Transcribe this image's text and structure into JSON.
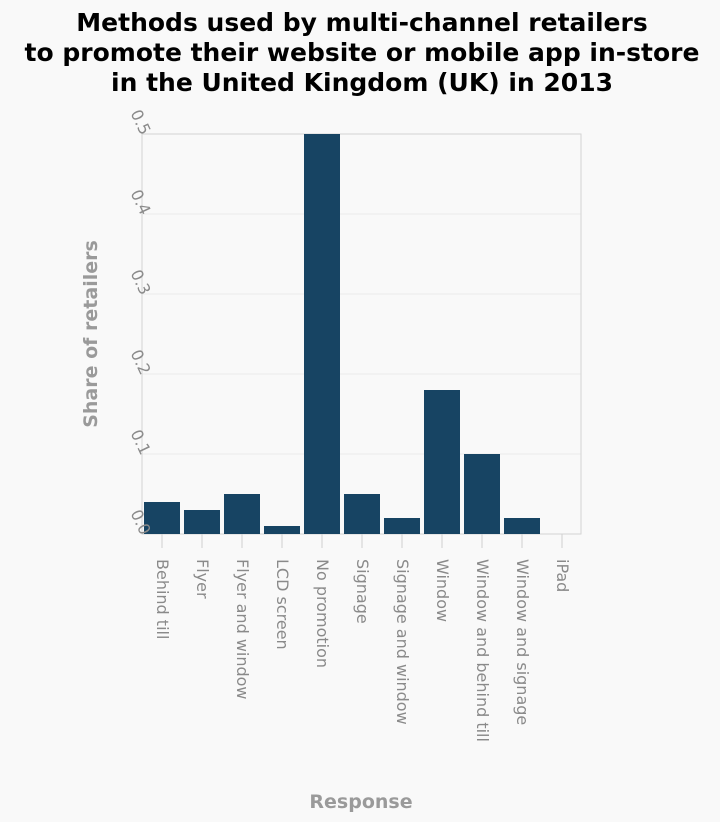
{
  "chart_data": {
    "type": "bar",
    "title_lines": [
      "Methods used by multi-channel retailers",
      "to promote their website or mobile app in-store",
      "in the United Kingdom (UK) in 2013"
    ],
    "xlabel": "Response",
    "ylabel": "Share of retailers",
    "categories": [
      "Behind till",
      "Flyer",
      "Flyer and window",
      "LCD screen",
      "No promotion",
      "Signage",
      "Signage and window",
      "Window",
      "Window and behind till",
      "Window and signage",
      "iPad"
    ],
    "values": [
      0.04,
      0.03,
      0.05,
      0.01,
      0.5,
      0.05,
      0.02,
      0.18,
      0.1,
      0.02,
      0.0
    ],
    "yticks": [
      "0.0",
      "0.1",
      "0.2",
      "0.3",
      "0.4",
      "0.5"
    ],
    "ylim": [
      0,
      0.5
    ],
    "grid": true,
    "bar_color": "#174463"
  }
}
